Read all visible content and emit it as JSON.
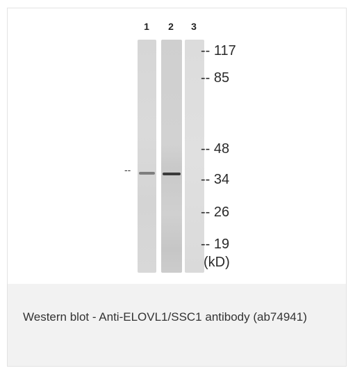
{
  "lanes": [
    {
      "label": "1"
    },
    {
      "label": "2"
    },
    {
      "label": "3"
    }
  ],
  "markers": [
    {
      "label": "-- 117",
      "kd": 117
    },
    {
      "label": "-- 85",
      "kd": 85
    },
    {
      "label": "-- 48",
      "kd": 48
    },
    {
      "label": "-- 34",
      "kd": 34
    },
    {
      "label": "-- 26",
      "kd": 26
    },
    {
      "label": "-- 19",
      "kd": 19
    }
  ],
  "unit_label": "(kD)",
  "band_indicator": "--",
  "caption": "Western blot - Anti-ELOVL1/SSC1 antibody (ab74941)",
  "colors": {
    "lane_background": "#dcdcdc",
    "band_dark": "#3a3a3a",
    "caption_panel": "#f2f2f2"
  }
}
